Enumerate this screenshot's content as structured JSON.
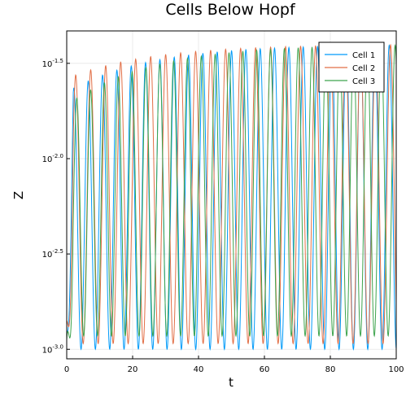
{
  "chart_data": {
    "type": "line",
    "title": "Cells Below Hopf",
    "xlabel": "t",
    "ylabel": "Z",
    "xlim": [
      0,
      100
    ],
    "ylim_log10": [
      -3.05,
      -1.33
    ],
    "yscale": "log10",
    "x_ticks": [
      "0",
      "20",
      "40",
      "60",
      "80",
      "100"
    ],
    "x_tick_values": [
      0,
      20,
      40,
      60,
      80,
      100
    ],
    "y_ticks": [
      {
        "base": "10",
        "exp": "-3.0",
        "value": -3.0
      },
      {
        "base": "10",
        "exp": "-2.5",
        "value": -2.5
      },
      {
        "base": "10",
        "exp": "-2.0",
        "value": -2.0
      },
      {
        "base": "10",
        "exp": "-1.5",
        "value": -1.5
      }
    ],
    "grid": true,
    "legend_position": "top-right",
    "series": [
      {
        "name": "Cell 1",
        "color": "#009af9",
        "period": 4.35,
        "phase": 0.0,
        "y_min": -3.0,
        "y_max_start": -1.65,
        "y_max_end": -1.4,
        "y_start": -2.9
      },
      {
        "name": "Cell 2",
        "color": "#e26f46",
        "period": 4.55,
        "phase": 0.45,
        "y_min": -2.97,
        "y_max_start": -1.58,
        "y_max_end": -1.4,
        "y_start": -2.85
      },
      {
        "name": "Cell 3",
        "color": "#3da44d",
        "period": 4.2,
        "phase": 0.95,
        "y_min": -2.93,
        "y_max_start": -1.72,
        "y_max_end": -1.4,
        "y_start": -2.95
      }
    ]
  }
}
